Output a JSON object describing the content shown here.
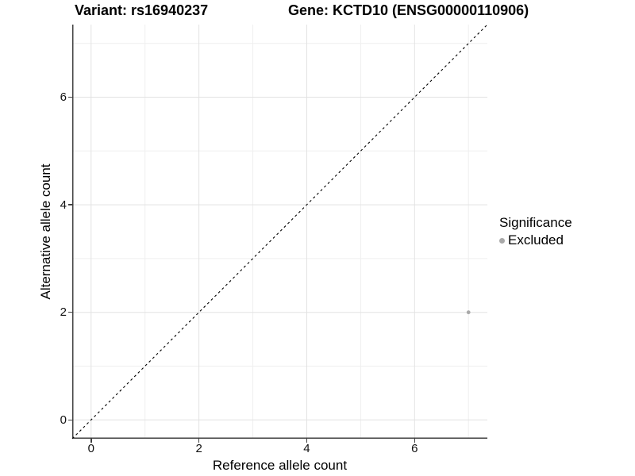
{
  "header": {
    "title_left": "Variant: rs16940237",
    "title_right": "Gene: KCTD10 (ENSG00000110906)"
  },
  "chart_data": {
    "type": "scatter",
    "title_left": "Variant: rs16940237",
    "title_right": "Gene: KCTD10 (ENSG00000110906)",
    "xlabel": "Reference allele count",
    "ylabel": "Alternative allele count",
    "xlim": [
      -0.35,
      7.35
    ],
    "ylim": [
      -0.35,
      7.35
    ],
    "x_ticks": [
      0,
      2,
      4,
      6
    ],
    "y_ticks": [
      0,
      2,
      4,
      6
    ],
    "x_minor_ticks": [
      1,
      3,
      5,
      7
    ],
    "y_minor_ticks": [
      1,
      3,
      5,
      7
    ],
    "grid": true,
    "identity_line": {
      "type": "dashed",
      "color": "#000000",
      "from": [
        -0.35,
        -0.35
      ],
      "to": [
        7.35,
        7.35
      ]
    },
    "series": [
      {
        "name": "Excluded",
        "color": "#a9a9a9",
        "points": [
          {
            "x": 7,
            "y": 2
          }
        ]
      }
    ],
    "legend": {
      "title": "Significance",
      "position": "right",
      "entries": [
        {
          "label": "Excluded",
          "color": "#a9a9a9"
        }
      ]
    },
    "colors": {
      "axis_line": "#404040",
      "grid_major": "#e2e2e2",
      "grid_minor": "#efefef",
      "tick_label": "#111111"
    }
  }
}
